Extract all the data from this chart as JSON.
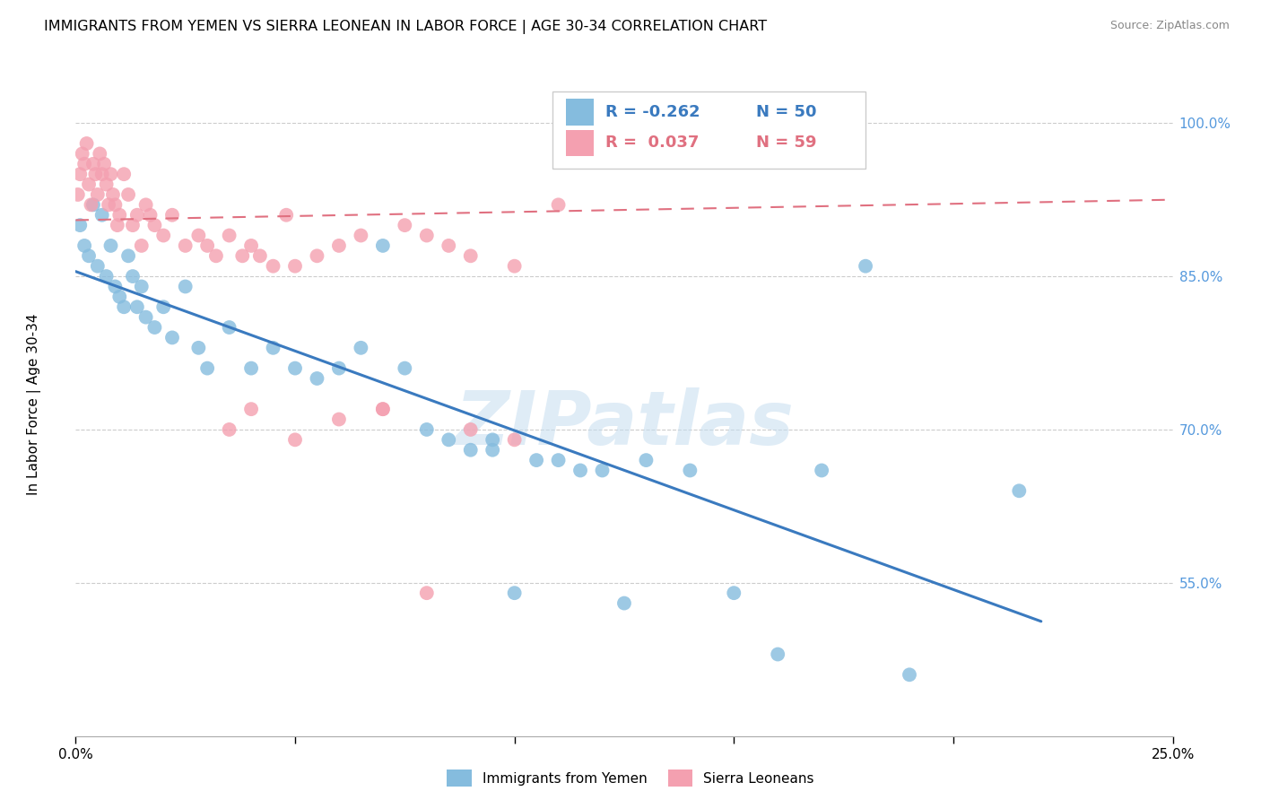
{
  "title": "IMMIGRANTS FROM YEMEN VS SIERRA LEONEAN IN LABOR FORCE | AGE 30-34 CORRELATION CHART",
  "source": "Source: ZipAtlas.com",
  "ylabel": "In Labor Force | Age 30-34",
  "xlim": [
    0.0,
    0.25
  ],
  "ylim": [
    0.4,
    1.05
  ],
  "legend_blue_r": "-0.262",
  "legend_blue_n": "50",
  "legend_pink_r": "0.037",
  "legend_pink_n": "59",
  "legend_blue_label": "Immigrants from Yemen",
  "legend_pink_label": "Sierra Leoneans",
  "blue_color": "#85bcde",
  "pink_color": "#f4a0b0",
  "trendline_blue_color": "#3a7abf",
  "trendline_pink_color": "#e07080",
  "watermark": "ZIPatlas",
  "blue_x": [
    0.001,
    0.002,
    0.003,
    0.004,
    0.005,
    0.006,
    0.007,
    0.008,
    0.009,
    0.01,
    0.011,
    0.012,
    0.013,
    0.014,
    0.015,
    0.016,
    0.018,
    0.02,
    0.022,
    0.025,
    0.028,
    0.03,
    0.035,
    0.04,
    0.045,
    0.05,
    0.055,
    0.06,
    0.065,
    0.07,
    0.075,
    0.08,
    0.085,
    0.09,
    0.095,
    0.1,
    0.11,
    0.12,
    0.13,
    0.14,
    0.095,
    0.105,
    0.115,
    0.125,
    0.15,
    0.16,
    0.17,
    0.18,
    0.19,
    0.215
  ],
  "blue_y": [
    0.9,
    0.88,
    0.87,
    0.92,
    0.86,
    0.91,
    0.85,
    0.88,
    0.84,
    0.83,
    0.82,
    0.87,
    0.85,
    0.82,
    0.84,
    0.81,
    0.8,
    0.82,
    0.79,
    0.84,
    0.78,
    0.76,
    0.8,
    0.76,
    0.78,
    0.76,
    0.75,
    0.76,
    0.78,
    0.88,
    0.76,
    0.7,
    0.69,
    0.68,
    0.68,
    0.54,
    0.67,
    0.66,
    0.67,
    0.66,
    0.69,
    0.67,
    0.66,
    0.53,
    0.54,
    0.48,
    0.66,
    0.86,
    0.46,
    0.64
  ],
  "pink_x": [
    0.0005,
    0.001,
    0.0015,
    0.002,
    0.0025,
    0.003,
    0.0035,
    0.004,
    0.0045,
    0.005,
    0.0055,
    0.006,
    0.0065,
    0.007,
    0.0075,
    0.008,
    0.0085,
    0.009,
    0.0095,
    0.01,
    0.011,
    0.012,
    0.013,
    0.014,
    0.015,
    0.016,
    0.017,
    0.018,
    0.02,
    0.022,
    0.025,
    0.028,
    0.03,
    0.032,
    0.035,
    0.038,
    0.04,
    0.042,
    0.045,
    0.048,
    0.05,
    0.055,
    0.06,
    0.065,
    0.07,
    0.075,
    0.08,
    0.085,
    0.09,
    0.1,
    0.035,
    0.04,
    0.05,
    0.06,
    0.07,
    0.08,
    0.09,
    0.1,
    0.11
  ],
  "pink_y": [
    0.93,
    0.95,
    0.97,
    0.96,
    0.98,
    0.94,
    0.92,
    0.96,
    0.95,
    0.93,
    0.97,
    0.95,
    0.96,
    0.94,
    0.92,
    0.95,
    0.93,
    0.92,
    0.9,
    0.91,
    0.95,
    0.93,
    0.9,
    0.91,
    0.88,
    0.92,
    0.91,
    0.9,
    0.89,
    0.91,
    0.88,
    0.89,
    0.88,
    0.87,
    0.89,
    0.87,
    0.88,
    0.87,
    0.86,
    0.91,
    0.86,
    0.87,
    0.88,
    0.89,
    0.72,
    0.9,
    0.89,
    0.88,
    0.87,
    0.86,
    0.7,
    0.72,
    0.69,
    0.71,
    0.72,
    0.54,
    0.7,
    0.69,
    0.92
  ]
}
